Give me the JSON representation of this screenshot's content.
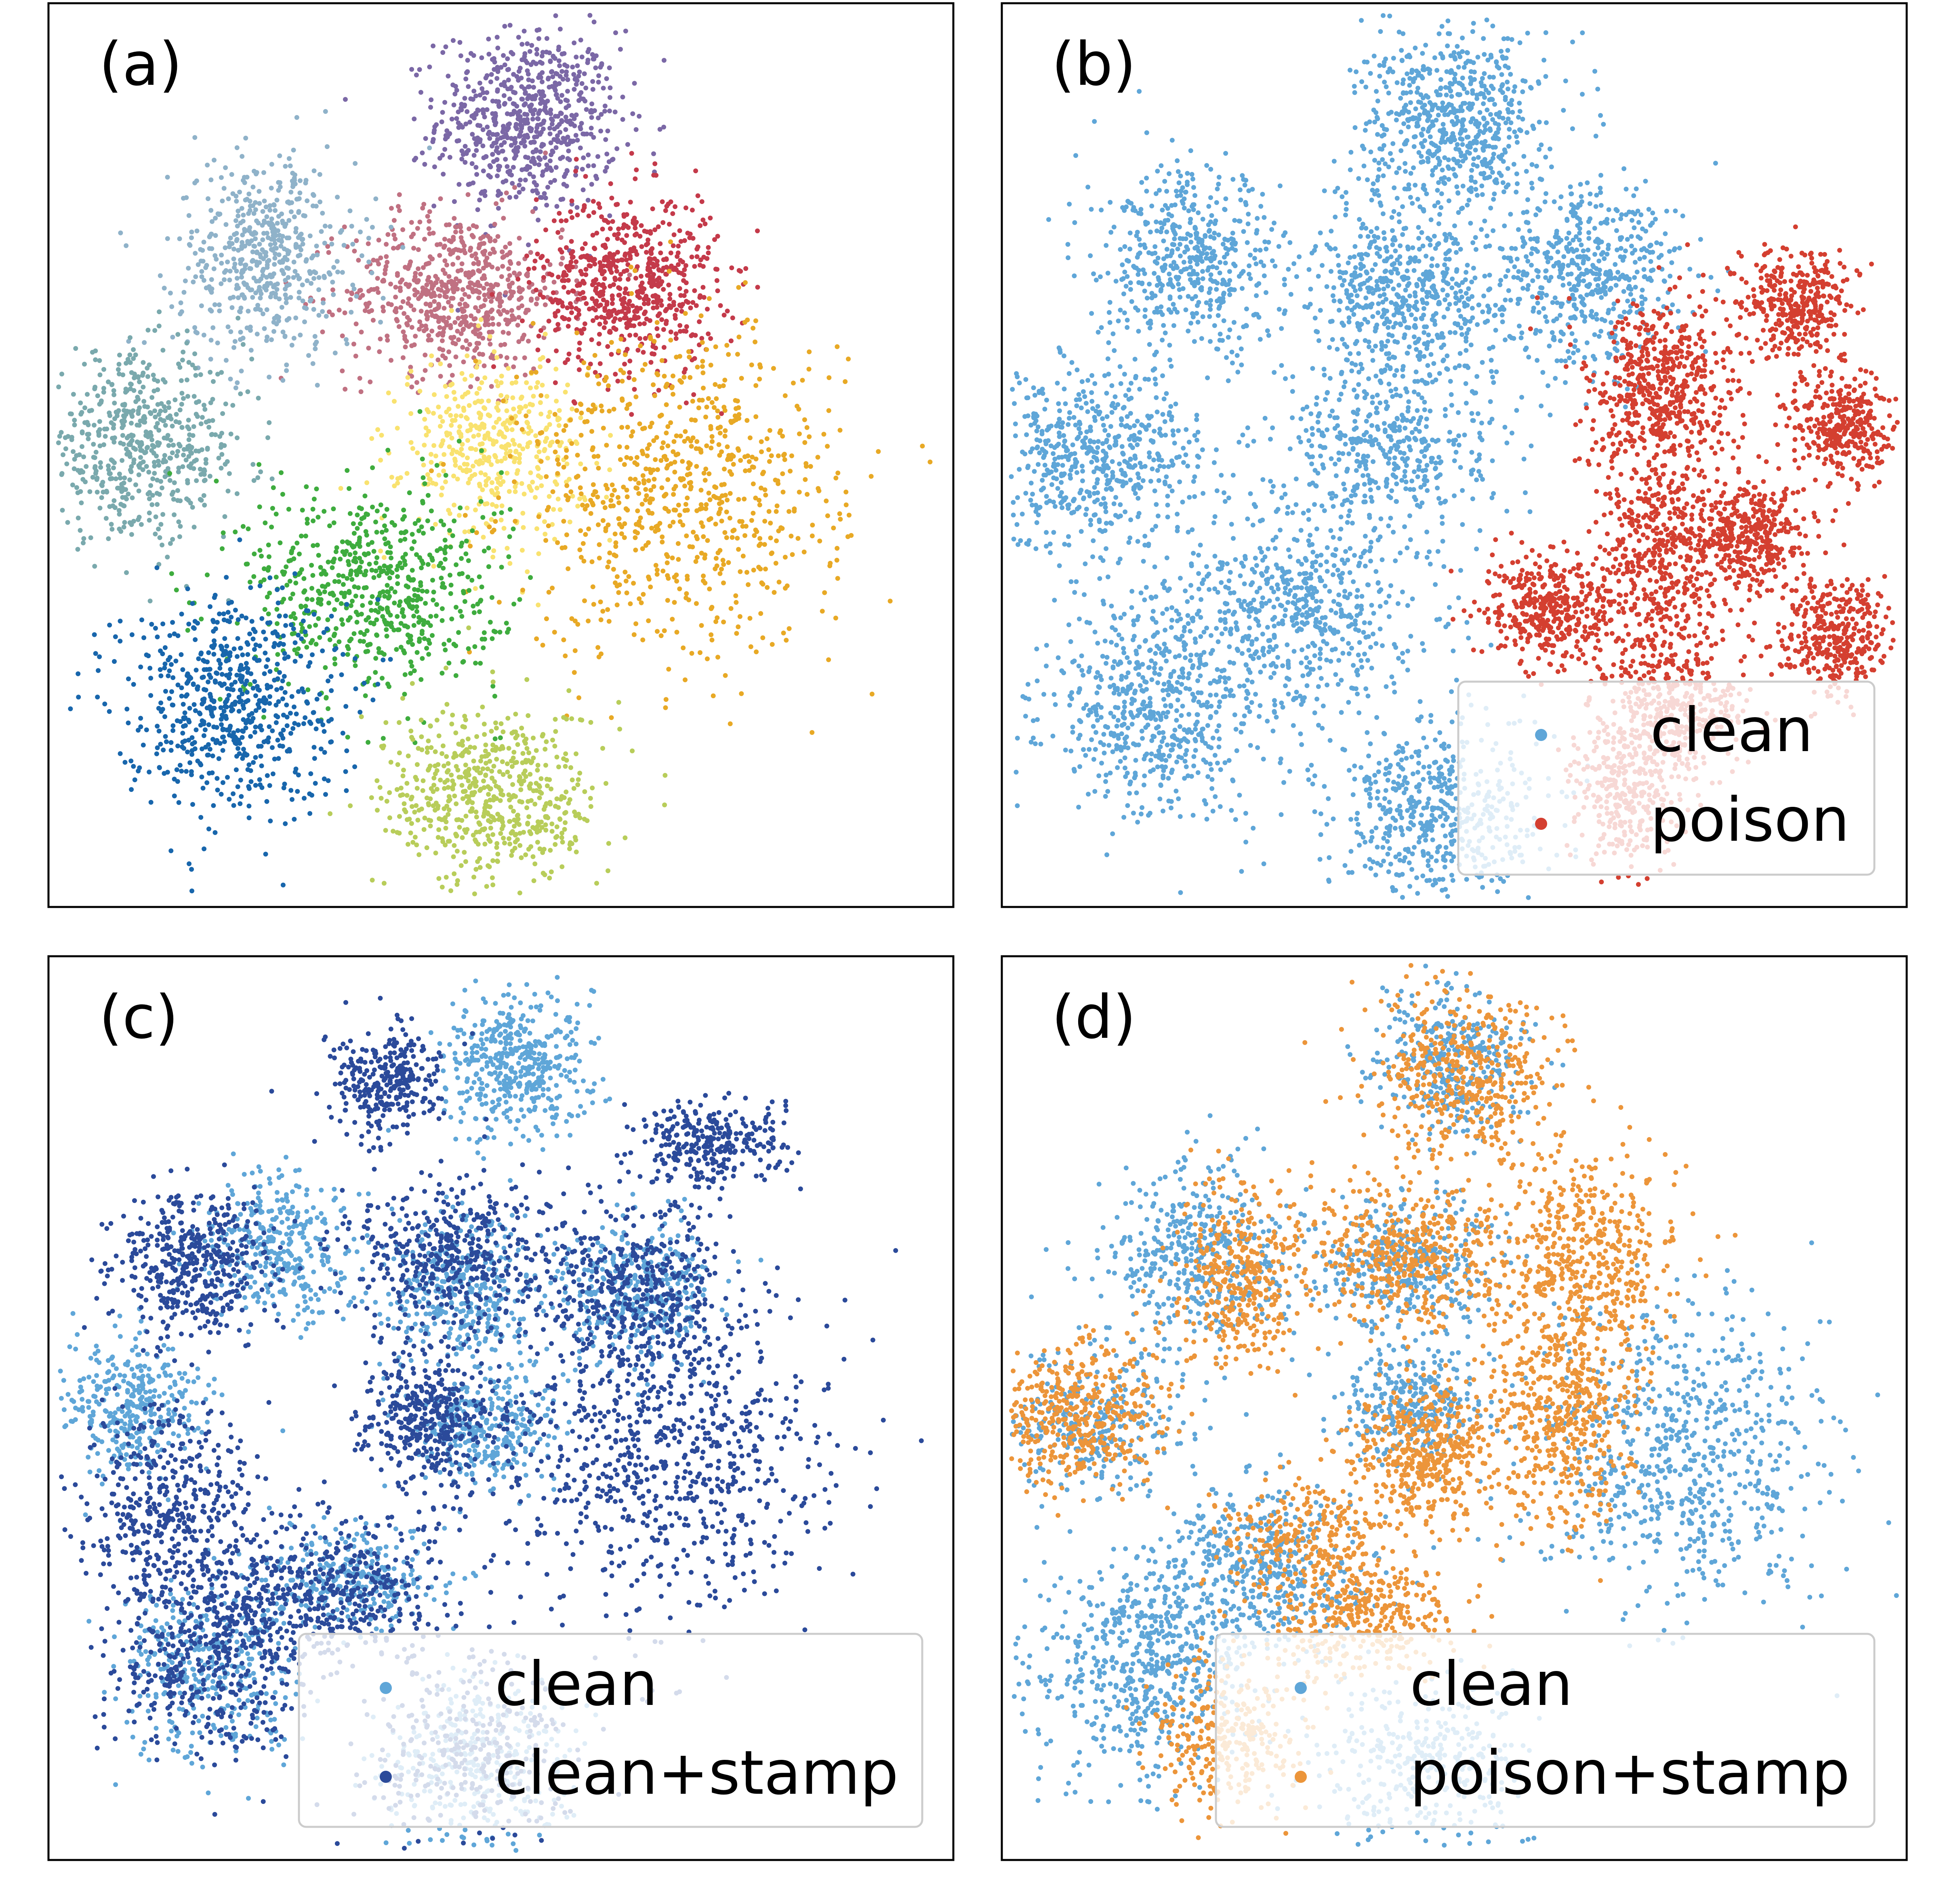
{
  "figure": {
    "panels": [
      {
        "label": "(a)",
        "legend": null
      },
      {
        "label": "(b)",
        "legend": [
          {
            "text": "clean",
            "color": "#5fa6d8"
          },
          {
            "text": "poison",
            "color": "#d43f30"
          }
        ]
      },
      {
        "label": "(c)",
        "legend": [
          {
            "text": "clean",
            "color": "#5fa6d8"
          },
          {
            "text": "clean+stamp",
            "color": "#2b4a9a"
          }
        ]
      },
      {
        "label": "(d)",
        "legend": [
          {
            "text": "clean",
            "color": "#5fa6d8"
          },
          {
            "text": "poison+stamp",
            "color": "#ec953a"
          }
        ]
      }
    ]
  },
  "chart_data": [
    {
      "type": "scatter",
      "title": "",
      "panel": "(a)",
      "xlabel": "",
      "ylabel": "",
      "grid": false,
      "axis_ticks": false,
      "xlim": [
        0,
        100
      ],
      "ylim": [
        0,
        100
      ],
      "series": [
        {
          "color": "#7b68a6",
          "clusters": [
            {
              "cx": 53,
              "cy": 87,
              "sx": 5,
              "sy": 5,
              "n": 700
            }
          ]
        },
        {
          "color": "#c07182",
          "clusters": [
            {
              "cx": 45,
              "cy": 68,
              "sx": 6,
              "sy": 4.5,
              "n": 650
            }
          ]
        },
        {
          "color": "#c43a4a",
          "clusters": [
            {
              "cx": 64,
              "cy": 69,
              "sx": 5,
              "sy": 5,
              "n": 650
            }
          ]
        },
        {
          "color": "#8fb2c9",
          "clusters": [
            {
              "cx": 24,
              "cy": 72,
              "sx": 5,
              "sy": 5.5,
              "n": 550
            }
          ]
        },
        {
          "color": "#7aa9ad",
          "clusters": [
            {
              "cx": 10,
              "cy": 51,
              "sx": 6,
              "sy": 5,
              "n": 600
            }
          ]
        },
        {
          "color": "#f9e26f",
          "clusters": [
            {
              "cx": 49,
              "cy": 51,
              "sx": 5,
              "sy": 5,
              "n": 450
            }
          ]
        },
        {
          "color": "#e8a925",
          "clusters": [
            {
              "cx": 70,
              "cy": 46,
              "sx": 9,
              "sy": 9,
              "n": 800
            }
          ]
        },
        {
          "color": "#3eac3e",
          "clusters": [
            {
              "cx": 36,
              "cy": 35,
              "sx": 7,
              "sy": 6,
              "n": 650
            }
          ]
        },
        {
          "color": "#1866ac",
          "clusters": [
            {
              "cx": 20,
              "cy": 23,
              "sx": 6,
              "sy": 6,
              "n": 650
            }
          ]
        },
        {
          "color": "#b8cd5a",
          "clusters": [
            {
              "cx": 49,
              "cy": 12,
              "sx": 6,
              "sy": 5,
              "n": 600
            }
          ]
        }
      ]
    },
    {
      "type": "scatter",
      "title": "",
      "panel": "(b)",
      "xlabel": "",
      "ylabel": "",
      "grid": false,
      "axis_ticks": false,
      "xlim": [
        0,
        100
      ],
      "ylim": [
        0,
        100
      ],
      "legend_position": "lower right",
      "series": [
        {
          "name": "clean",
          "color": "#5fa6d8",
          "clusters": [
            {
              "cx": 50,
              "cy": 87,
              "sx": 5,
              "sy": 5,
              "n": 650
            },
            {
              "cx": 45,
              "cy": 68,
              "sx": 6,
              "sy": 5,
              "n": 600
            },
            {
              "cx": 65,
              "cy": 70,
              "sx": 5,
              "sy": 5,
              "n": 500
            },
            {
              "cx": 21,
              "cy": 71,
              "sx": 5,
              "sy": 5,
              "n": 500
            },
            {
              "cx": 10,
              "cy": 50,
              "sx": 6,
              "sy": 5,
              "n": 600
            },
            {
              "cx": 43,
              "cy": 51,
              "sx": 6,
              "sy": 5,
              "n": 450
            },
            {
              "cx": 33,
              "cy": 33,
              "sx": 7,
              "sy": 6,
              "n": 600
            },
            {
              "cx": 17,
              "cy": 22,
              "sx": 6,
              "sy": 6,
              "n": 600
            },
            {
              "cx": 48,
              "cy": 10,
              "sx": 6,
              "sy": 5,
              "n": 550
            }
          ]
        },
        {
          "name": "poison",
          "color": "#d43f30",
          "clusters": [
            {
              "cx": 88,
              "cy": 67,
              "sx": 3,
              "sy": 3,
              "n": 350
            },
            {
              "cx": 73,
              "cy": 57,
              "sx": 4,
              "sy": 5,
              "n": 550
            },
            {
              "cx": 93,
              "cy": 53,
              "sx": 3,
              "sy": 3,
              "n": 350
            },
            {
              "cx": 83,
              "cy": 41,
              "sx": 3,
              "sy": 3,
              "n": 350
            },
            {
              "cx": 73,
              "cy": 39,
              "sx": 4,
              "sy": 6,
              "n": 500
            },
            {
              "cx": 61,
              "cy": 33,
              "sx": 4,
              "sy": 3,
              "n": 400
            },
            {
              "cx": 92,
              "cy": 30,
              "sx": 3,
              "sy": 3,
              "n": 350
            },
            {
              "cx": 74,
              "cy": 22,
              "sx": 4,
              "sy": 4,
              "n": 400
            },
            {
              "cx": 69,
              "cy": 13,
              "sx": 3,
              "sy": 4,
              "n": 300
            }
          ]
        }
      ]
    },
    {
      "type": "scatter",
      "title": "",
      "panel": "(c)",
      "xlabel": "",
      "ylabel": "",
      "grid": false,
      "axis_ticks": false,
      "xlim": [
        0,
        100
      ],
      "ylim": [
        0,
        100
      ],
      "legend_position": "lower right",
      "series": [
        {
          "name": "clean",
          "color": "#5fa6d8",
          "clusters": [
            {
              "cx": 52,
              "cy": 88,
              "sx": 4,
              "sy": 4,
              "n": 450
            },
            {
              "cx": 46,
              "cy": 63,
              "sx": 5,
              "sy": 4,
              "n": 400
            },
            {
              "cx": 65,
              "cy": 63,
              "sx": 4,
              "sy": 4,
              "n": 350
            },
            {
              "cx": 25,
              "cy": 68,
              "sx": 4,
              "sy": 4,
              "n": 350
            },
            {
              "cx": 9,
              "cy": 50,
              "sx": 4,
              "sy": 4,
              "n": 350
            },
            {
              "cx": 48,
              "cy": 48,
              "sx": 4,
              "sy": 3,
              "n": 300
            },
            {
              "cx": 33,
              "cy": 31,
              "sx": 5,
              "sy": 3,
              "n": 300
            },
            {
              "cx": 18,
              "cy": 21,
              "sx": 5,
              "sy": 5,
              "n": 350
            },
            {
              "cx": 47,
              "cy": 10,
              "sx": 5,
              "sy": 5,
              "n": 350
            }
          ]
        },
        {
          "name": "clean+stamp",
          "color": "#2b4a9a",
          "clusters": [
            {
              "cx": 37,
              "cy": 86,
              "sx": 3,
              "sy": 3,
              "n": 300
            },
            {
              "cx": 73,
              "cy": 79,
              "sx": 4,
              "sy": 2.5,
              "n": 300
            },
            {
              "cx": 45,
              "cy": 67,
              "sx": 6,
              "sy": 4,
              "n": 450
            },
            {
              "cx": 65,
              "cy": 63,
              "sx": 5,
              "sy": 5,
              "n": 400
            },
            {
              "cx": 16,
              "cy": 66,
              "sx": 4,
              "sy": 4,
              "n": 450
            },
            {
              "cx": 13,
              "cy": 40,
              "sx": 5,
              "sy": 5,
              "n": 400
            },
            {
              "cx": 42,
              "cy": 49,
              "sx": 4,
              "sy": 4,
              "n": 400
            },
            {
              "cx": 68,
              "cy": 45,
              "sx": 9,
              "sy": 9,
              "n": 800
            },
            {
              "cx": 31,
              "cy": 30,
              "sx": 7,
              "sy": 4,
              "n": 450
            },
            {
              "cx": 18,
              "cy": 23,
              "sx": 6,
              "sy": 6,
              "n": 500
            },
            {
              "cx": 46,
              "cy": 12,
              "sx": 6,
              "sy": 5,
              "n": 300
            }
          ]
        }
      ]
    },
    {
      "type": "scatter",
      "title": "",
      "panel": "(d)",
      "xlabel": "",
      "ylabel": "",
      "grid": false,
      "axis_ticks": false,
      "xlim": [
        0,
        100
      ],
      "ylim": [
        0,
        100
      ],
      "legend_position": "lower right",
      "series": [
        {
          "name": "clean",
          "color": "#5fa6d8",
          "clusters": [
            {
              "cx": 50,
              "cy": 88,
              "sx": 4,
              "sy": 4,
              "n": 350
            },
            {
              "cx": 45,
              "cy": 66,
              "sx": 5,
              "sy": 4,
              "n": 350
            },
            {
              "cx": 22,
              "cy": 67,
              "sx": 5,
              "sy": 5,
              "n": 450
            },
            {
              "cx": 10,
              "cy": 48,
              "sx": 5,
              "sy": 4,
              "n": 300
            },
            {
              "cx": 45,
              "cy": 50,
              "sx": 4,
              "sy": 3,
              "n": 300
            },
            {
              "cx": 76,
              "cy": 44,
              "sx": 8,
              "sy": 8,
              "n": 700
            },
            {
              "cx": 29,
              "cy": 32,
              "sx": 6,
              "sy": 5,
              "n": 450
            },
            {
              "cx": 16,
              "cy": 22,
              "sx": 6,
              "sy": 6,
              "n": 600
            },
            {
              "cx": 46,
              "cy": 10,
              "sx": 6,
              "sy": 5,
              "n": 350
            }
          ]
        },
        {
          "name": "poison+stamp",
          "color": "#ec953a",
          "clusters": [
            {
              "cx": 51,
              "cy": 87,
              "sx": 5,
              "sy": 5,
              "n": 450
            },
            {
              "cx": 45,
              "cy": 67,
              "sx": 6,
              "sy": 4,
              "n": 450
            },
            {
              "cx": 65,
              "cy": 67,
              "sx": 5,
              "sy": 6,
              "n": 500
            },
            {
              "cx": 26,
              "cy": 64,
              "sx": 3.5,
              "sy": 5,
              "n": 350
            },
            {
              "cx": 8,
              "cy": 49,
              "sx": 5,
              "sy": 4,
              "n": 450
            },
            {
              "cx": 47,
              "cy": 45,
              "sx": 4,
              "sy": 4,
              "n": 450
            },
            {
              "cx": 62,
              "cy": 49,
              "sx": 4,
              "sy": 6,
              "n": 450
            },
            {
              "cx": 40,
              "cy": 27,
              "sx": 5,
              "sy": 3,
              "n": 350
            },
            {
              "cx": 25,
              "cy": 14,
              "sx": 4,
              "sy": 4,
              "n": 300
            },
            {
              "cx": 33,
              "cy": 36,
              "sx": 5,
              "sy": 3,
              "n": 250
            }
          ]
        }
      ]
    }
  ]
}
